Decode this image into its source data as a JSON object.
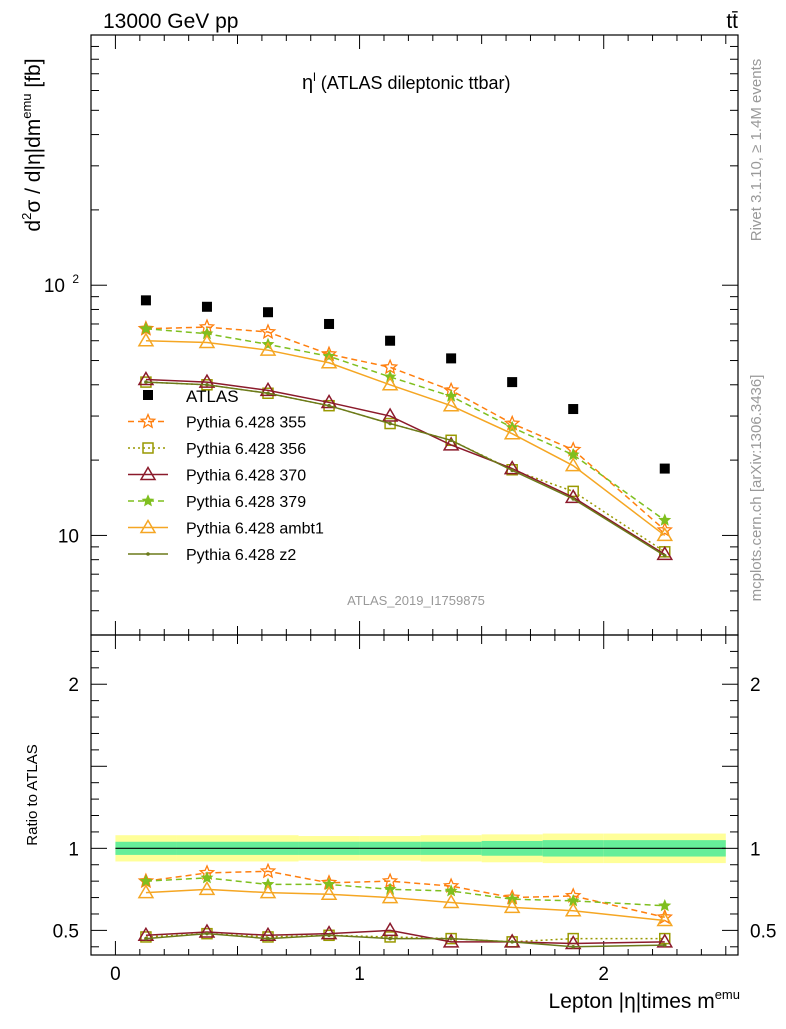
{
  "header": {
    "left": "13000 GeV pp",
    "right": "tt̄"
  },
  "side_labels": {
    "rivet": "Rivet 3.1.10, ≥ 1.4M events",
    "mcplots": "mcplots.cern.ch [arXiv:1306.3436]"
  },
  "chart_data": {
    "type": "line",
    "title": "η^l (ATLAS dileptonic ttbar)",
    "title_main": "η",
    "title_sup": "l",
    "title_rest": " (ATLAS dileptonic ttbar)",
    "analysis_label": "ATLAS_2019_I1759875",
    "ylabel_main": {
      "prefix": "d",
      "sup1": "2",
      "mid": "σ / d|η|dm",
      "sup2": "emu",
      "suffix": " [fb]"
    },
    "ylabel_ratio": "Ratio to ATLAS",
    "xlabel": {
      "main": "Lepton |η|times m",
      "sup": "emu"
    },
    "main_scale": "log",
    "main_ylim": [
      4,
      1000
    ],
    "main_yticks": [
      {
        "value": 10,
        "label": "10"
      },
      {
        "value": 100,
        "label": "10",
        "sup": "2"
      }
    ],
    "ratio_ylim": [
      0.35,
      2.3
    ],
    "ratio_yticks": [
      {
        "value": 0.5,
        "label": "0.5"
      },
      {
        "value": 1,
        "label": "1"
      },
      {
        "value": 2,
        "label": "2"
      }
    ],
    "xlim": [
      -0.1,
      2.55
    ],
    "xticks": [
      0,
      1,
      2
    ],
    "x": [
      0.125,
      0.375,
      0.625,
      0.875,
      1.125,
      1.375,
      1.625,
      1.875,
      2.25
    ],
    "data_series": {
      "name": "ATLAS",
      "values": [
        87,
        82,
        78,
        70,
        60,
        51,
        41,
        32,
        18.5
      ],
      "band_inner": [
        0.04,
        0.04,
        0.04,
        0.04,
        0.04,
        0.04,
        0.045,
        0.05,
        0.05
      ],
      "band_outer": [
        0.08,
        0.08,
        0.08,
        0.075,
        0.075,
        0.08,
        0.085,
        0.09,
        0.09
      ]
    },
    "series": [
      {
        "name": "Pythia 6.428 355",
        "color": "#ff7f0e",
        "marker": "star-open",
        "dash": "6,4",
        "values": [
          67,
          68,
          65,
          53,
          47,
          38,
          28,
          22,
          10.5
        ],
        "ratio": [
          0.8,
          0.85,
          0.86,
          0.79,
          0.8,
          0.77,
          0.7,
          0.71,
          0.58
        ]
      },
      {
        "name": "Pythia 6.428 356",
        "color": "#999900",
        "marker": "square-open",
        "dash": "2,3",
        "values": [
          41,
          40,
          37,
          33,
          28,
          24,
          18.3,
          15,
          8.6
        ],
        "ratio": [
          0.46,
          0.48,
          0.46,
          0.47,
          0.46,
          0.45,
          0.43,
          0.45,
          0.45
        ]
      },
      {
        "name": "Pythia 6.428 370",
        "color": "#8b1a2b",
        "marker": "triangle-open",
        "dash": "",
        "values": [
          42,
          41,
          38,
          34,
          30,
          23,
          18.5,
          14.2,
          8.4
        ],
        "ratio": [
          0.47,
          0.49,
          0.47,
          0.48,
          0.5,
          0.43,
          0.43,
          0.42,
          0.43
        ]
      },
      {
        "name": "Pythia 6.428 379",
        "color": "#7fbf1f",
        "marker": "star-filled",
        "dash": "6,4",
        "values": [
          67,
          64,
          58,
          52,
          43,
          36,
          27,
          21,
          11.5
        ],
        "ratio": [
          0.8,
          0.82,
          0.78,
          0.78,
          0.75,
          0.74,
          0.69,
          0.68,
          0.65
        ]
      },
      {
        "name": "Pythia 6.428 ambt1",
        "color": "#f5a623",
        "marker": "triangle-open",
        "dash": "",
        "values": [
          60,
          59,
          55,
          49,
          40,
          33,
          25.5,
          19,
          10
        ],
        "ratio": [
          0.73,
          0.75,
          0.73,
          0.72,
          0.7,
          0.67,
          0.64,
          0.62,
          0.56
        ]
      },
      {
        "name": "Pythia 6.428 z2",
        "color": "#6b7a1a",
        "marker": "dot",
        "dash": "",
        "values": [
          41,
          40,
          37,
          33,
          28,
          24,
          18.2,
          14,
          8.3
        ],
        "ratio": [
          0.45,
          0.48,
          0.45,
          0.47,
          0.45,
          0.45,
          0.43,
          0.4,
          0.41
        ]
      }
    ],
    "legend_position": "middle-left",
    "grid": false
  }
}
